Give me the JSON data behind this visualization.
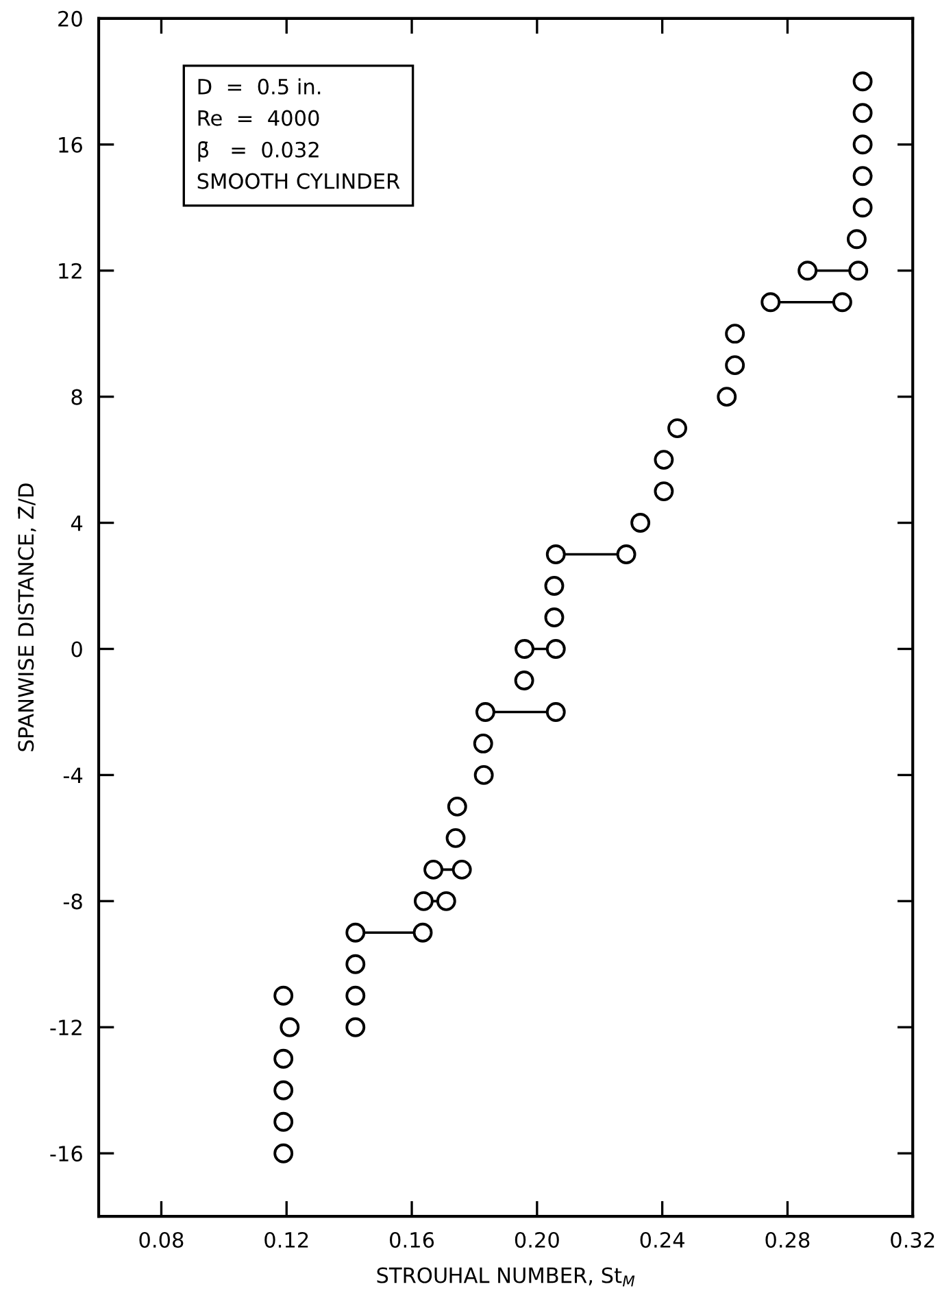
{
  "chart_data": {
    "type": "scatter",
    "xlabel": "STROUHAL NUMBER, St$_{M}$",
    "ylabel": "SPANWISE DISTANCE, Z̄/D",
    "annotations": [
      "D  =  0.5 in.",
      "Re  =  4000",
      "β̄   =  0.032",
      "SMOOTH CYLINDER"
    ],
    "xlim": [
      0.06,
      0.32
    ],
    "xticks": [
      {
        "value": 0.08,
        "label": "0.08"
      },
      {
        "value": 0.12,
        "label": "0.12"
      },
      {
        "value": 0.16,
        "label": "0.16"
      },
      {
        "value": 0.2,
        "label": "0.20"
      },
      {
        "value": 0.24,
        "label": "0.24"
      },
      {
        "value": 0.28,
        "label": "0.28"
      },
      {
        "value": 0.32,
        "label": "0.32"
      }
    ],
    "ylim": [
      -18,
      20
    ],
    "yticks": [
      -16,
      -12,
      -8,
      -4,
      0,
      4,
      8,
      12,
      16,
      20
    ],
    "grid": false,
    "legend": false,
    "series": [
      {
        "color": "#000000",
        "marker": "circle",
        "x": [
          0.119,
          0.119,
          0.119,
          0.119,
          0.121,
          0.119,
          0.142,
          0.142,
          0.142,
          0.142,
          0.1635,
          0.1638,
          0.171,
          0.1669,
          0.176,
          0.174,
          0.1745,
          0.183,
          0.1828,
          0.1835,
          0.206,
          0.1959,
          0.196,
          0.206,
          0.2055,
          0.2055,
          0.206,
          0.2285,
          0.233,
          0.2405,
          0.2405,
          0.2448,
          0.2606,
          0.2632,
          0.2632,
          0.2746,
          0.2975,
          0.2864,
          0.3026,
          0.3021,
          0.304,
          0.304,
          0.304,
          0.304,
          0.304
        ],
        "values": [
          -16,
          -15,
          -14,
          -13,
          -12,
          -11,
          -12,
          -11,
          -10,
          -9,
          -9,
          -8,
          -8,
          -7,
          -7,
          -6,
          -5,
          -4,
          -3,
          -2,
          -2,
          -1,
          0,
          0,
          1,
          2,
          3,
          3,
          4,
          5,
          6,
          7,
          8,
          9,
          10,
          11,
          11,
          12,
          12,
          13,
          14,
          15,
          16,
          17,
          18
        ]
      },
      {
        "type": "line",
        "color": "#000000",
        "marker": "none",
        "x": [
          0.142,
          0.1635
        ],
        "values": [
          -9,
          -9
        ]
      },
      {
        "type": "line",
        "color": "#000000",
        "marker": "none",
        "x": [
          0.1638,
          0.171
        ],
        "values": [
          -8,
          -8
        ]
      },
      {
        "type": "line",
        "color": "#000000",
        "marker": "none",
        "x": [
          0.1669,
          0.176
        ],
        "values": [
          -7,
          -7
        ]
      },
      {
        "type": "line",
        "color": "#000000",
        "marker": "none",
        "x": [
          0.1835,
          0.206
        ],
        "values": [
          -2,
          -2
        ]
      },
      {
        "type": "line",
        "color": "#000000",
        "marker": "none",
        "x": [
          0.196,
          0.206
        ],
        "values": [
          0,
          0
        ]
      },
      {
        "type": "line",
        "color": "#000000",
        "marker": "none",
        "x": [
          0.206,
          0.2285
        ],
        "values": [
          3,
          3
        ]
      },
      {
        "type": "line",
        "color": "#000000",
        "marker": "none",
        "x": [
          0.2746,
          0.2975
        ],
        "values": [
          11,
          11
        ]
      },
      {
        "type": "line",
        "color": "#000000",
        "marker": "none",
        "x": [
          0.2864,
          0.3026
        ],
        "values": [
          12,
          12
        ]
      }
    ]
  }
}
